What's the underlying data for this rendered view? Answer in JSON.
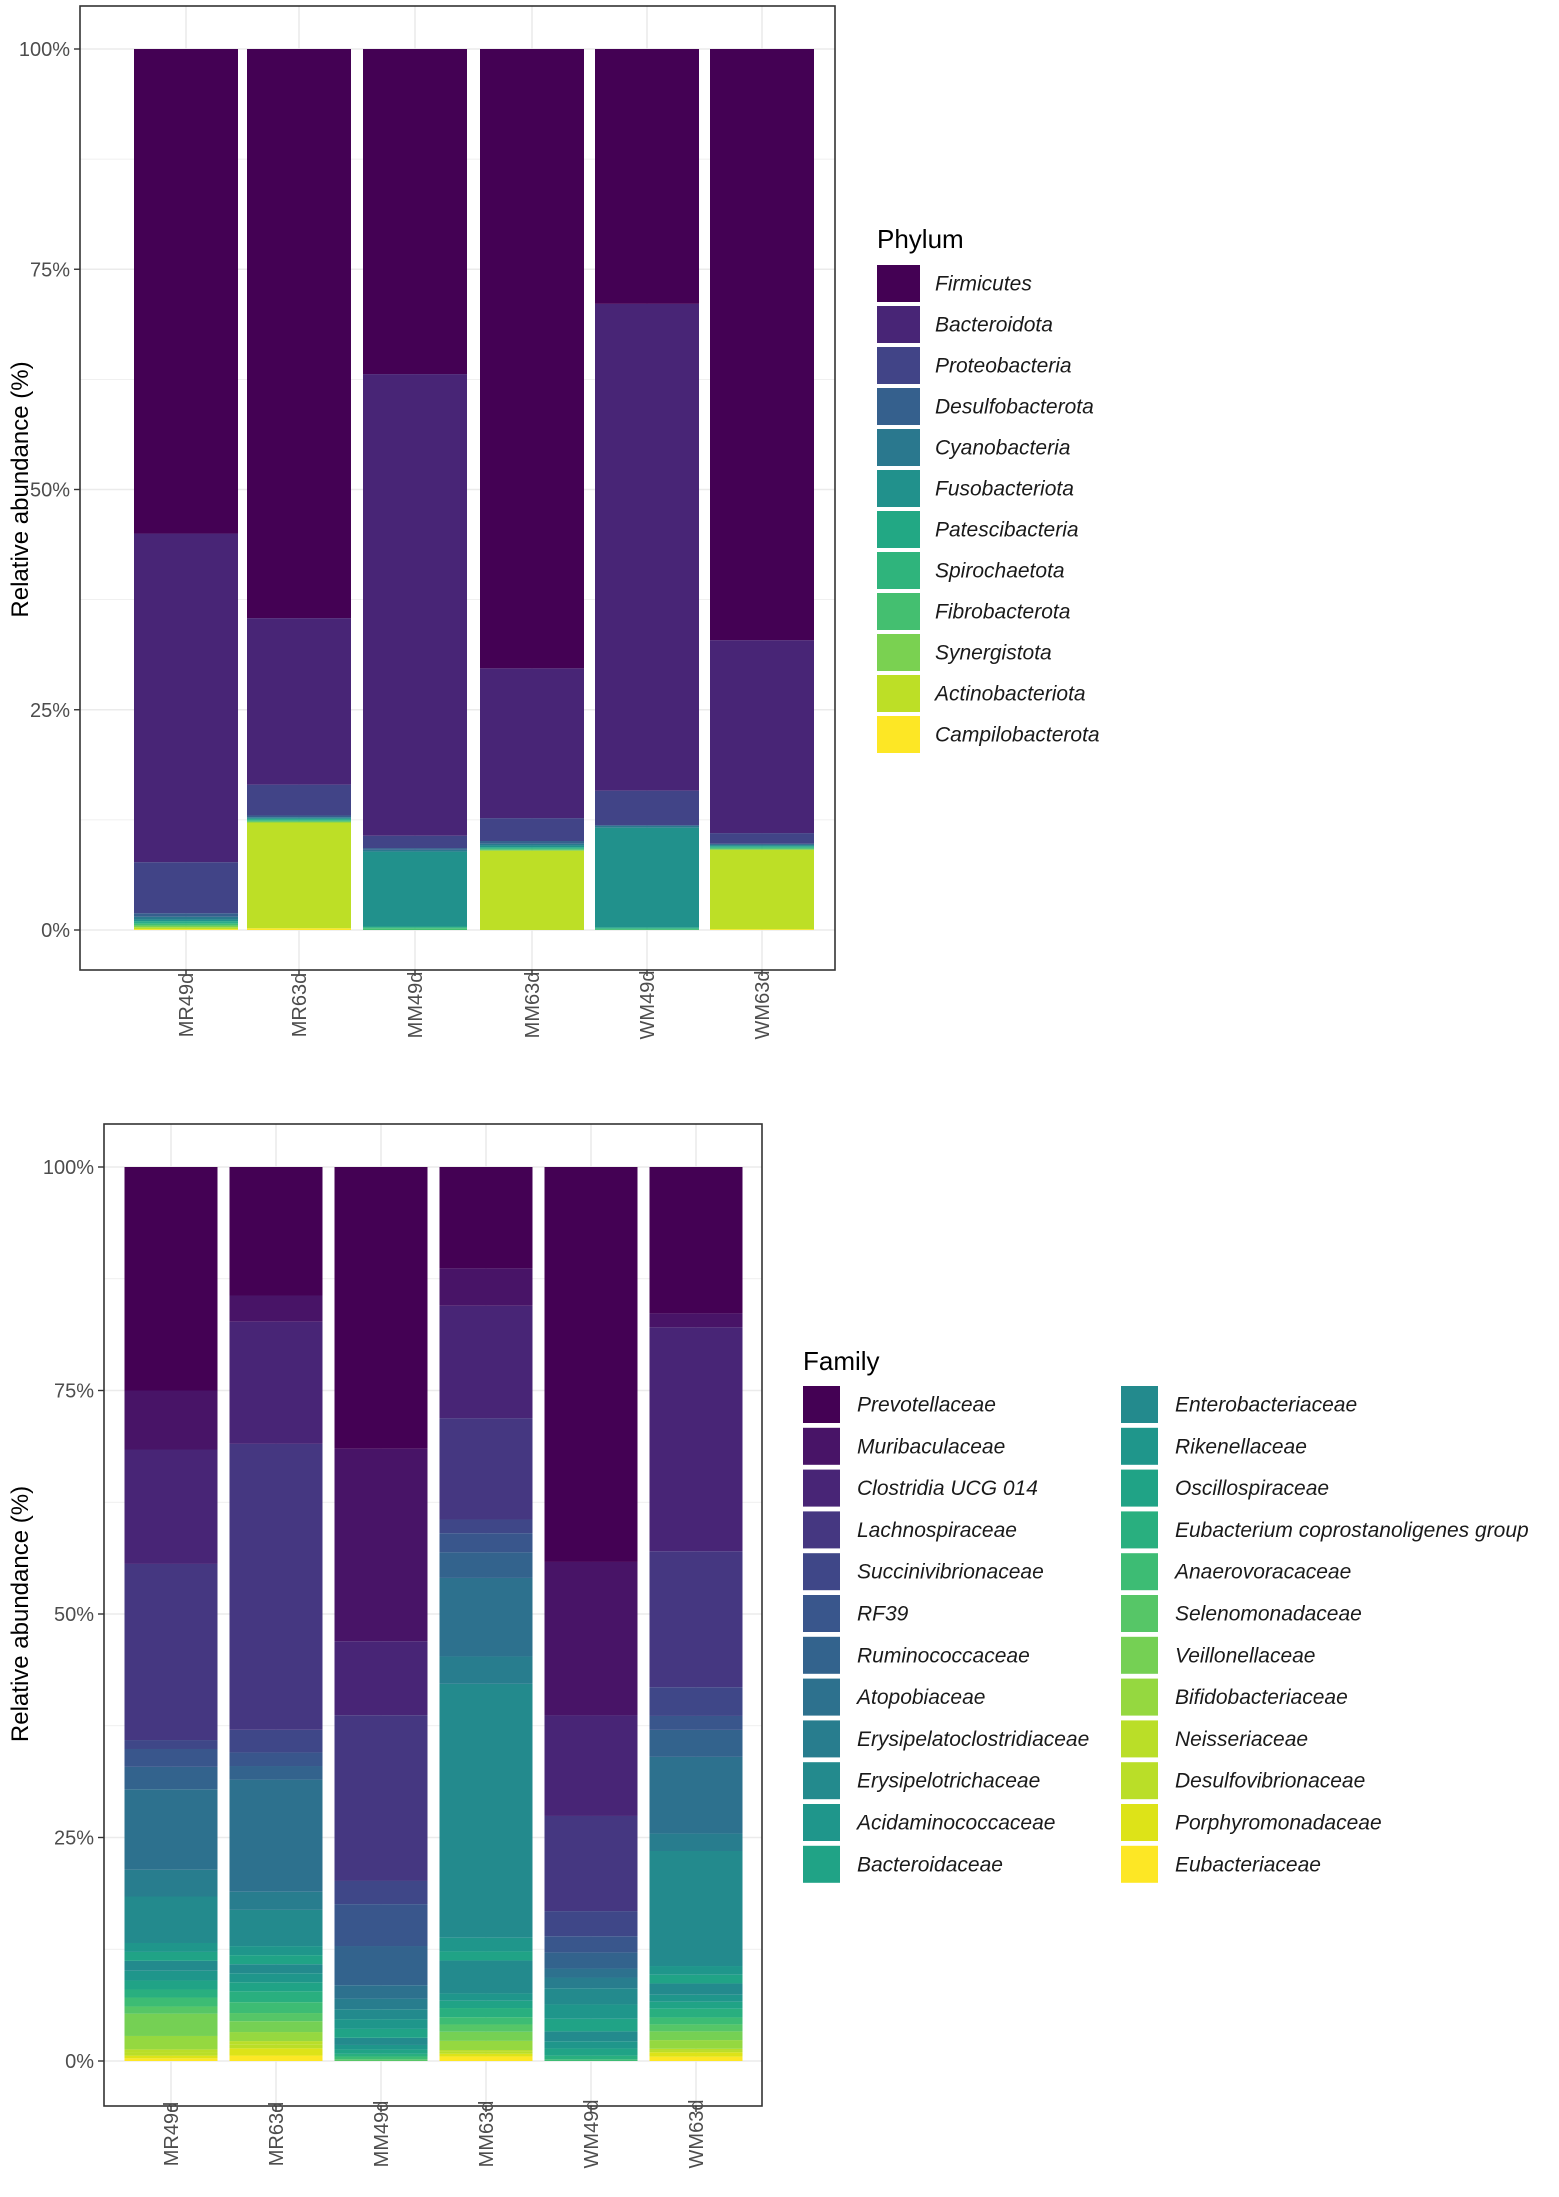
{
  "colors": {
    "v0": "#440154",
    "v1": "#481467",
    "v2": "#482576",
    "v3": "#453781",
    "v4": "#3f4788",
    "v5": "#39568c",
    "v6": "#33638d",
    "v7": "#2d718e",
    "v8": "#287d8e",
    "v9": "#238a8d",
    "v10": "#1f968b",
    "v11": "#20a386",
    "v12": "#29af7f",
    "v13": "#3dbc74",
    "v14": "#56c667",
    "v15": "#75d054",
    "v16": "#95d840",
    "v17": "#bade28",
    "v18": "#dde318",
    "v19": "#fde725"
  },
  "chart_data": [
    {
      "type": "bar",
      "stacked": true,
      "ylabel": "Relative abundance (%)",
      "ylim": [
        0,
        100
      ],
      "yticks": [
        "0%",
        "25%",
        "50%",
        "75%",
        "100%"
      ],
      "categories": [
        "MR49d",
        "MR63d",
        "MM49d",
        "MM63d",
        "WM49d",
        "WM63d"
      ],
      "legend_title": "Phylum",
      "series": [
        {
          "name": "Firmicutes",
          "color": "#440154",
          "values": [
            55.0,
            64.6,
            36.9,
            70.3,
            28.9,
            67.1
          ]
        },
        {
          "name": "Bacteroidota",
          "color": "#482576",
          "values": [
            37.3,
            18.9,
            52.4,
            17.0,
            55.2,
            21.9
          ]
        },
        {
          "name": "Proteobacteria",
          "color": "#414487",
          "values": [
            5.8,
            3.5,
            1.4,
            2.6,
            3.9,
            1.2
          ]
        },
        {
          "name": "Desulfobacterota",
          "color": "#35608d",
          "values": [
            0.4,
            0.2,
            0.2,
            0.3,
            0.1,
            0.1
          ]
        },
        {
          "name": "Cyanobacteria",
          "color": "#2a788e",
          "values": [
            0.3,
            0.1,
            0.2,
            0.2,
            0.2,
            0.1
          ]
        },
        {
          "name": "Fusobacteriota",
          "color": "#21918c",
          "values": [
            0.2,
            0.1,
            8.5,
            0.2,
            11.3,
            0.1
          ]
        },
        {
          "name": "Patescibacteria",
          "color": "#22a884",
          "values": [
            0.2,
            0.1,
            0.1,
            0.1,
            0.1,
            0.1
          ]
        },
        {
          "name": "Spirochaetota",
          "color": "#2fb47c",
          "values": [
            0.1,
            0.1,
            0.1,
            0.1,
            0.1,
            0.1
          ]
        },
        {
          "name": "Fibrobacterota",
          "color": "#44bf70",
          "values": [
            0.2,
            0.1,
            0.2,
            0.1,
            0.1,
            0.1
          ]
        },
        {
          "name": "Synergistota",
          "color": "#7ad151",
          "values": [
            0.2,
            0.1,
            0.0,
            0.1,
            0.0,
            0.1
          ]
        },
        {
          "name": "Actinobacteriota",
          "color": "#bddf26",
          "values": [
            0.2,
            12.0,
            0.0,
            9.0,
            0.0,
            9.0
          ]
        },
        {
          "name": "Campilobacterota",
          "color": "#fde725",
          "values": [
            0.1,
            0.2,
            0.0,
            0.0,
            0.0,
            0.1
          ]
        }
      ]
    },
    {
      "type": "bar",
      "stacked": true,
      "ylabel": "Relative abundance (%)",
      "ylim": [
        0,
        100
      ],
      "yticks": [
        "0%",
        "25%",
        "50%",
        "75%",
        "100%"
      ],
      "categories": [
        "MR49d",
        "MR63d",
        "MM49d",
        "MM63d",
        "WM49d",
        "WM63d"
      ],
      "legend_title": "Family",
      "series": [
        {
          "name": "Prevotellaceae",
          "color": "v0",
          "values": [
            25.0,
            14.2,
            31.6,
            11.1,
            44.0,
            16.8
          ]
        },
        {
          "name": "Muribaculaceae",
          "color": "v1",
          "values": [
            6.6,
            2.9,
            21.6,
            4.1,
            17.1,
            1.6
          ]
        },
        {
          "name": "Clostridia UCG 014",
          "color": "v2",
          "values": [
            12.8,
            13.5,
            8.3,
            12.3,
            11.2,
            25.7
          ]
        },
        {
          "name": "Lachnospiraceae",
          "color": "v3",
          "values": [
            19.7,
            31.6,
            18.6,
            11.1,
            10.6,
            15.6
          ]
        },
        {
          "name": "Succinivibrionaceae",
          "color": "v4",
          "values": [
            1.0,
            2.5,
            2.6,
            1.5,
            2.8,
            3.3
          ]
        },
        {
          "name": "RF39",
          "color": "v5",
          "values": [
            2.0,
            1.5,
            4.7,
            2.1,
            1.8,
            1.6
          ]
        },
        {
          "name": "Ruminococcaceae",
          "color": "v6",
          "values": [
            2.5,
            1.5,
            4.4,
            2.8,
            1.8,
            3.1
          ]
        },
        {
          "name": "Atopobiaceae",
          "color": "v7",
          "values": [
            9.0,
            12.4,
            1.5,
            8.6,
            1.0,
            8.8
          ]
        },
        {
          "name": "Erysipelatoclostridiaceae",
          "color": "v8",
          "values": [
            3.0,
            2.0,
            1.2,
            3.0,
            1.2,
            2.0
          ]
        },
        {
          "name": "Erysipelotrichaceae",
          "color": "v9",
          "values": [
            5.2,
            4.0,
            1.1,
            27.8,
            1.8,
            13.2
          ]
        },
        {
          "name": "Acidaminococcaceae",
          "color": "v10",
          "values": [
            1.0,
            1.0,
            1.1,
            1.5,
            1.6,
            1.0
          ]
        },
        {
          "name": "Bacteroidaceae",
          "color": "v11",
          "values": [
            1.0,
            1.0,
            1.0,
            1.0,
            1.4,
            1.0
          ]
        },
        {
          "name": "Enterobacteriaceae",
          "color": "v9",
          "values": [
            1.1,
            1.0,
            0.8,
            3.6,
            1.1,
            1.3
          ]
        },
        {
          "name": "Rikenellaceae",
          "color": "v10",
          "values": [
            1.1,
            1.0,
            0.5,
            0.8,
            0.8,
            0.8
          ]
        },
        {
          "name": "Oscillospiraceae",
          "color": "v11",
          "values": [
            1.0,
            1.0,
            0.5,
            0.8,
            0.8,
            0.8
          ]
        },
        {
          "name": "Eubacterium coprostanoligenes group",
          "color": "v12",
          "values": [
            0.9,
            1.2,
            0.3,
            1.0,
            0.4,
            1.0
          ]
        },
        {
          "name": "Anaerovoracaceae",
          "color": "v13",
          "values": [
            1.0,
            1.2,
            0.3,
            0.8,
            0.2,
            0.8
          ]
        },
        {
          "name": "Selenomonadaceae",
          "color": "v14",
          "values": [
            0.8,
            0.9,
            0.2,
            0.8,
            0.0,
            0.8
          ]
        },
        {
          "name": "Veillonellaceae",
          "color": "v15",
          "values": [
            2.5,
            1.2,
            0.0,
            1.0,
            0.0,
            1.0
          ]
        },
        {
          "name": "Bifidobacteriaceae",
          "color": "v16",
          "values": [
            1.5,
            1.0,
            0.0,
            1.0,
            0.0,
            1.0
          ]
        },
        {
          "name": "Neisseriaceae",
          "color": "v17",
          "values": [
            0.4,
            0.4,
            0.0,
            0.2,
            0.0,
            0.2
          ]
        },
        {
          "name": "Desulfovibrionaceae",
          "color": "v17",
          "values": [
            0.3,
            0.4,
            0.0,
            0.2,
            0.0,
            0.2
          ]
        },
        {
          "name": "Porphyromonadaceae",
          "color": "v18",
          "values": [
            0.3,
            0.8,
            0.0,
            0.3,
            0.0,
            0.5
          ]
        },
        {
          "name": "Eubacteriaceae",
          "color": "v19",
          "values": [
            0.3,
            0.6,
            0.0,
            0.5,
            0.0,
            0.5
          ]
        }
      ]
    }
  ]
}
